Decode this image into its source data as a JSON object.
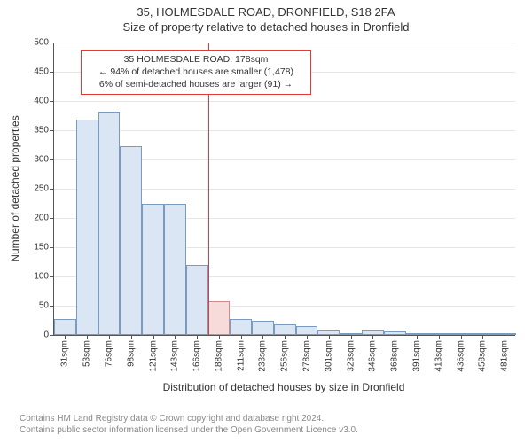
{
  "title_line1": "35, HOLMESDALE ROAD, DRONFIELD, S18 2FA",
  "title_line2": "Size of property relative to detached houses in Dronfield",
  "ylabel": "Number of detached properties",
  "xlabel": "Distribution of detached houses by size in Dronfield",
  "footer_line1": "Contains HM Land Registry data © Crown copyright and database right 2024.",
  "footer_line2": "Contains public sector information licensed under the Open Government Licence v3.0.",
  "annotation": {
    "line1": "35 HOLMESDALE ROAD: 178sqm",
    "line2": "← 94% of detached houses are smaller (1,478)",
    "line3": "6% of semi-detached houses are larger (91) →"
  },
  "marker_x": 178,
  "chart": {
    "type": "histogram",
    "x_min": 20,
    "x_max": 492,
    "y_min": 0,
    "y_max": 500,
    "y_ticks": [
      0,
      50,
      100,
      150,
      200,
      250,
      300,
      350,
      400,
      450,
      500
    ],
    "x_tick_labels": [
      "31sqm",
      "53sqm",
      "76sqm",
      "98sqm",
      "121sqm",
      "143sqm",
      "166sqm",
      "188sqm",
      "211sqm",
      "233sqm",
      "256sqm",
      "278sqm",
      "301sqm",
      "323sqm",
      "346sqm",
      "368sqm",
      "391sqm",
      "413sqm",
      "436sqm",
      "458sqm",
      "481sqm"
    ],
    "bin_width": 22.5,
    "bar_fill": "#dbe6f5",
    "bar_stroke": "#7a9ac0",
    "highlight_fill": "#f7dbdb",
    "highlight_stroke": "#d08a8a",
    "grid_color": "#e6e6e6",
    "background": "#ffffff",
    "values": [
      28,
      368,
      382,
      323,
      225,
      224,
      120,
      58,
      28,
      25,
      18,
      15,
      8,
      3,
      7,
      6,
      3,
      2,
      3,
      1,
      2
    ]
  }
}
